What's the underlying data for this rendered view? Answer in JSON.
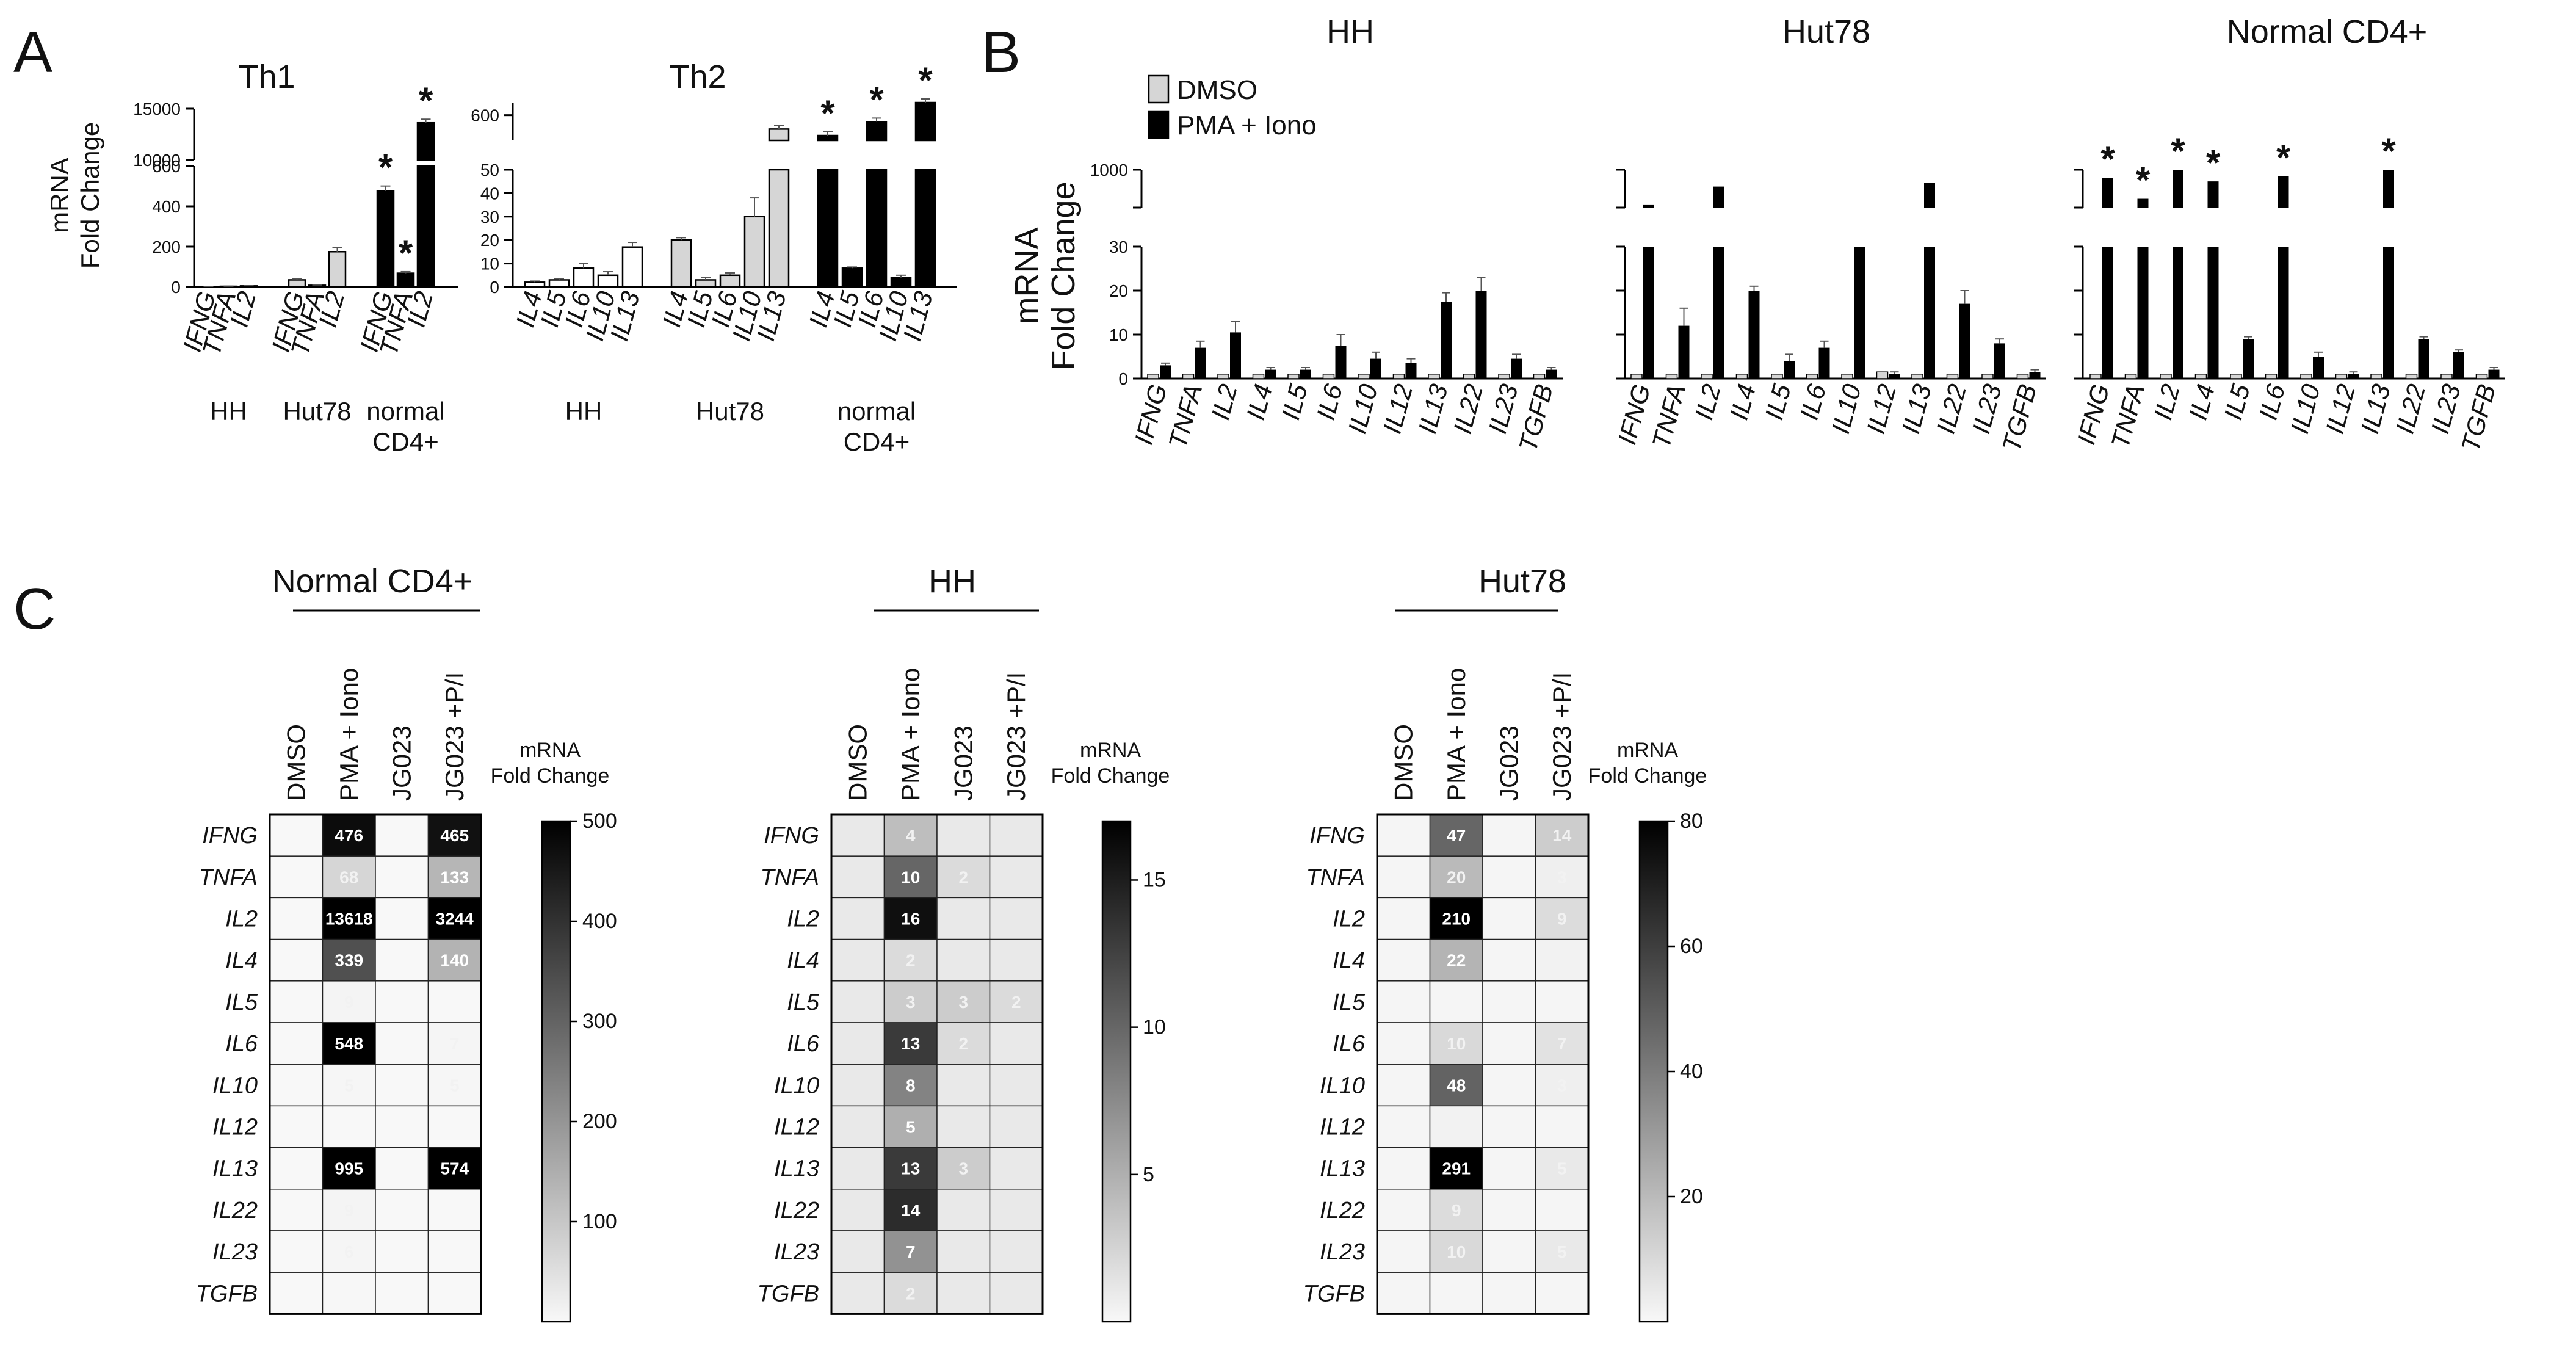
{
  "panel_letters": [
    "A",
    "B",
    "C"
  ],
  "chart_data": [
    {
      "id": "A-Th1",
      "type": "bar",
      "title": "Th1",
      "ylabel": "mRNA Fold Change",
      "axis_broken": true,
      "ylim_lower": [
        0,
        600
      ],
      "ylim_upper": [
        10000,
        15000
      ],
      "yticks_lower": [
        "0",
        "200",
        "400",
        "600"
      ],
      "yticks_upper": [
        "10000",
        "15000"
      ],
      "groups": [
        "HH",
        "Hut78",
        "normal CD4+"
      ],
      "categories": [
        "IFNG",
        "TNFA",
        "IL2"
      ],
      "bars": [
        {
          "group": "HH",
          "gene": "IFNG",
          "value": 2,
          "err": 1,
          "fill": "white",
          "star": false
        },
        {
          "group": "HH",
          "gene": "TNFA",
          "value": 3,
          "err": 1,
          "fill": "white",
          "star": false
        },
        {
          "group": "HH",
          "gene": "IL2",
          "value": 5,
          "err": 1,
          "fill": "white",
          "star": false
        },
        {
          "group": "Hut78",
          "gene": "IFNG",
          "value": 35,
          "err": 5,
          "fill": "gray",
          "star": false
        },
        {
          "group": "Hut78",
          "gene": "TNFA",
          "value": 8,
          "err": 2,
          "fill": "gray",
          "star": false
        },
        {
          "group": "Hut78",
          "gene": "IL2",
          "value": 175,
          "err": 20,
          "fill": "gray",
          "star": false
        },
        {
          "group": "normal CD4+",
          "gene": "IFNG",
          "value": 476,
          "err": 25,
          "fill": "black",
          "star": true
        },
        {
          "group": "normal CD4+",
          "gene": "TNFA",
          "value": 68,
          "err": 8,
          "fill": "black",
          "star": true
        },
        {
          "group": "normal CD4+",
          "gene": "IL2",
          "value": 13618,
          "err": 500,
          "fill": "black",
          "star": true
        }
      ]
    },
    {
      "id": "A-Th2",
      "type": "bar",
      "title": "Th2",
      "axis_broken": true,
      "ylim_lower": [
        0,
        50
      ],
      "ylim_upper": [
        400,
        700
      ],
      "yticks_lower": [
        "0",
        "10",
        "20",
        "30",
        "40",
        "50"
      ],
      "yticks_upper": [
        "600"
      ],
      "groups": [
        "HH",
        "Hut78",
        "normal CD4+"
      ],
      "categories": [
        "IL4",
        "IL5",
        "IL6",
        "IL10",
        "IL13"
      ],
      "bars": [
        {
          "group": "HH",
          "gene": "IL4",
          "value": 2,
          "err": 0.5,
          "fill": "white",
          "star": false
        },
        {
          "group": "HH",
          "gene": "IL5",
          "value": 3,
          "err": 0.5,
          "fill": "white",
          "star": false
        },
        {
          "group": "HH",
          "gene": "IL6",
          "value": 8,
          "err": 2,
          "fill": "white",
          "star": false
        },
        {
          "group": "HH",
          "gene": "IL10",
          "value": 5,
          "err": 1.5,
          "fill": "white",
          "star": false
        },
        {
          "group": "HH",
          "gene": "IL13",
          "value": 17,
          "err": 2,
          "fill": "white",
          "star": false
        },
        {
          "group": "Hut78",
          "gene": "IL4",
          "value": 20,
          "err": 1,
          "fill": "gray",
          "star": false
        },
        {
          "group": "Hut78",
          "gene": "IL5",
          "value": 3,
          "err": 1,
          "fill": "gray",
          "star": false
        },
        {
          "group": "Hut78",
          "gene": "IL6",
          "value": 5,
          "err": 1,
          "fill": "gray",
          "star": false
        },
        {
          "group": "Hut78",
          "gene": "IL10",
          "value": 30,
          "err": 8,
          "fill": "gray",
          "star": false
        },
        {
          "group": "Hut78",
          "gene": "IL13",
          "value": 490,
          "err": 10,
          "fill": "gray",
          "star": false
        },
        {
          "group": "normal CD4+",
          "gene": "IL4",
          "value": 339,
          "err": 20,
          "fill": "black",
          "star": true
        },
        {
          "group": "normal CD4+",
          "gene": "IL5",
          "value": 8,
          "err": 0.5,
          "fill": "black",
          "star": false
        },
        {
          "group": "normal CD4+",
          "gene": "IL6",
          "value": 548,
          "err": 25,
          "fill": "black",
          "star": true
        },
        {
          "group": "normal CD4+",
          "gene": "IL10",
          "value": 4,
          "err": 1,
          "fill": "black",
          "star": false
        },
        {
          "group": "normal CD4+",
          "gene": "IL13",
          "value": 995,
          "err": 40,
          "fill": "black",
          "star": true
        }
      ]
    },
    {
      "id": "B",
      "type": "bar",
      "ylabel": "mRNA Fold Change",
      "legend": [
        {
          "label": "DMSO",
          "color": "#d6d6d6"
        },
        {
          "label": "PMA + Iono",
          "color": "#000000"
        }
      ],
      "axis_broken": true,
      "ylim_lower": [
        0,
        30
      ],
      "yticks_lower": [
        "0",
        "10",
        "20",
        "30"
      ],
      "yticks_upper": [
        "1000"
      ],
      "genes": [
        "IFNG",
        "TNFA",
        "IL2",
        "IL4",
        "IL5",
        "IL6",
        "IL10",
        "IL12",
        "IL13",
        "IL22",
        "IL23",
        "TGFB"
      ],
      "panels": [
        {
          "title": "HH",
          "dmso": [
            1,
            1,
            1,
            1,
            1,
            1,
            1,
            1,
            1,
            1,
            1,
            1
          ],
          "pma": [
            3,
            7,
            10.5,
            2,
            2,
            7.5,
            4.5,
            3.5,
            17.5,
            20,
            4.5,
            2
          ],
          "err": [
            0.5,
            1.5,
            2.5,
            0.5,
            0.5,
            2.5,
            1.5,
            1,
            2,
            3,
            1,
            0.5
          ],
          "stars": [
            false,
            false,
            false,
            false,
            false,
            false,
            false,
            false,
            false,
            false,
            false,
            false
          ],
          "show_axis_values": true
        },
        {
          "title": "Hut78",
          "dmso": [
            1,
            1,
            1,
            1,
            1,
            1,
            1,
            1.5,
            1,
            1,
            1,
            1
          ],
          "pma": [
            40,
            12,
            210,
            20,
            4,
            7,
            30,
            1,
            291,
            17,
            8,
            1.5
          ],
          "err": [
            0,
            4,
            6,
            1,
            1.5,
            1.5,
            0,
            0.5,
            6,
            3,
            1,
            0.5
          ],
          "stars": [
            false,
            false,
            false,
            false,
            false,
            false,
            false,
            false,
            false,
            false,
            false,
            false
          ],
          "show_axis_values": false
        },
        {
          "title": "Normal CD4+",
          "dmso": [
            1,
            1,
            1,
            1,
            1,
            1,
            1,
            1,
            1,
            1,
            1,
            1
          ],
          "pma": [
            476,
            68,
            13618,
            339,
            9,
            548,
            5,
            1,
            995,
            9,
            6,
            2
          ],
          "err": [
            15,
            0,
            0,
            15,
            0.5,
            15,
            1,
            0.5,
            0,
            0.5,
            0.5,
            0.5
          ],
          "stars": [
            true,
            true,
            true,
            true,
            false,
            true,
            false,
            false,
            true,
            false,
            false,
            false
          ],
          "show_axis_values": false
        }
      ]
    },
    {
      "id": "C",
      "type": "heatmap",
      "rows": [
        "IFNG",
        "TNFA",
        "IL2",
        "IL4",
        "IL5",
        "IL6",
        "IL10",
        "IL12",
        "IL13",
        "IL22",
        "IL23",
        "TGFB"
      ],
      "columns": [
        "DMSO",
        "PMA + Iono",
        "JG023",
        "JG023 +P/I"
      ],
      "colorbar_title": [
        "mRNA",
        "Fold Change"
      ],
      "panels": [
        {
          "title": "Normal CD4+",
          "max": 500,
          "ticks": [
            100,
            200,
            300,
            400,
            500
          ],
          "values": [
            [
              1,
              476,
              1,
              465
            ],
            [
              1,
              68,
              1,
              133
            ],
            [
              1,
              13618,
              1,
              3244
            ],
            [
              1,
              339,
              1,
              140
            ],
            [
              1,
              9,
              1,
              1
            ],
            [
              1,
              548,
              1,
              7
            ],
            [
              1,
              5,
              1,
              5
            ],
            [
              1,
              1,
              1,
              1
            ],
            [
              1,
              995,
              1,
              574
            ],
            [
              1,
              9,
              1,
              1
            ],
            [
              1,
              6,
              1,
              1
            ],
            [
              1,
              2,
              1,
              1
            ]
          ],
          "labels": [
            [
              "",
              "476",
              "",
              "465"
            ],
            [
              "",
              "68",
              "",
              "133"
            ],
            [
              "",
              "13618",
              "",
              "3244"
            ],
            [
              "",
              "339",
              "",
              "140"
            ],
            [
              "",
              "9",
              "",
              ""
            ],
            [
              "",
              "548",
              "",
              "7"
            ],
            [
              "",
              "5",
              "",
              "5"
            ],
            [
              "",
              "",
              "",
              ""
            ],
            [
              "",
              "995",
              "",
              "574"
            ],
            [
              "",
              "9",
              "",
              ""
            ],
            [
              "",
              "6",
              "",
              ""
            ],
            [
              "",
              "",
              "",
              ""
            ]
          ]
        },
        {
          "title": "HH",
          "max": 17,
          "ticks": [
            5,
            10,
            15
          ],
          "values": [
            [
              1,
              4,
              1,
              1
            ],
            [
              1,
              10,
              2,
              1
            ],
            [
              1,
              16,
              1,
              1
            ],
            [
              1,
              2,
              1,
              1
            ],
            [
              1,
              3,
              3,
              2
            ],
            [
              1,
              13,
              2,
              1
            ],
            [
              1,
              8,
              1,
              1
            ],
            [
              1,
              5,
              1,
              1
            ],
            [
              1,
              13,
              3,
              1
            ],
            [
              1,
              14,
              1,
              1
            ],
            [
              1,
              7,
              1,
              1
            ],
            [
              1,
              2,
              1,
              1
            ]
          ],
          "labels": [
            [
              "",
              "4",
              "",
              ""
            ],
            [
              "",
              "10",
              "2",
              ""
            ],
            [
              "",
              "16",
              "",
              ""
            ],
            [
              "",
              "2",
              "",
              ""
            ],
            [
              "",
              "3",
              "3",
              "2"
            ],
            [
              "",
              "13",
              "2",
              ""
            ],
            [
              "",
              "8",
              "",
              ""
            ],
            [
              "",
              "5",
              "",
              ""
            ],
            [
              "",
              "13",
              "3",
              ""
            ],
            [
              "",
              "14",
              "",
              ""
            ],
            [
              "",
              "7",
              "",
              ""
            ],
            [
              "",
              "2",
              "",
              ""
            ]
          ]
        },
        {
          "title": "Hut78",
          "max": 80,
          "ticks": [
            20,
            40,
            60,
            80
          ],
          "values": [
            [
              1,
              47,
              1,
              14
            ],
            [
              1,
              20,
              1,
              3
            ],
            [
              1,
              210,
              1,
              9
            ],
            [
              1,
              22,
              1,
              2
            ],
            [
              1,
              1,
              1,
              1
            ],
            [
              1,
              10,
              1,
              7
            ],
            [
              1,
              48,
              1,
              3
            ],
            [
              1,
              2,
              1,
              1
            ],
            [
              1,
              291,
              1,
              5
            ],
            [
              1,
              9,
              1,
              1
            ],
            [
              1,
              10,
              1,
              5
            ],
            [
              1,
              1,
              1,
              1
            ]
          ],
          "labels": [
            [
              "",
              "47",
              "",
              "14"
            ],
            [
              "",
              "20",
              "",
              "3"
            ],
            [
              "",
              "210",
              "",
              "9"
            ],
            [
              "",
              "22",
              "",
              "2"
            ],
            [
              "",
              "",
              "",
              ""
            ],
            [
              "",
              "10",
              "",
              "7"
            ],
            [
              "",
              "48",
              "",
              "3"
            ],
            [
              "",
              "2",
              "",
              ""
            ],
            [
              "",
              "291",
              "",
              "5"
            ],
            [
              "",
              "9",
              "",
              ""
            ],
            [
              "",
              "10",
              "",
              "5"
            ],
            [
              "",
              "",
              "",
              ""
            ]
          ]
        }
      ]
    }
  ]
}
